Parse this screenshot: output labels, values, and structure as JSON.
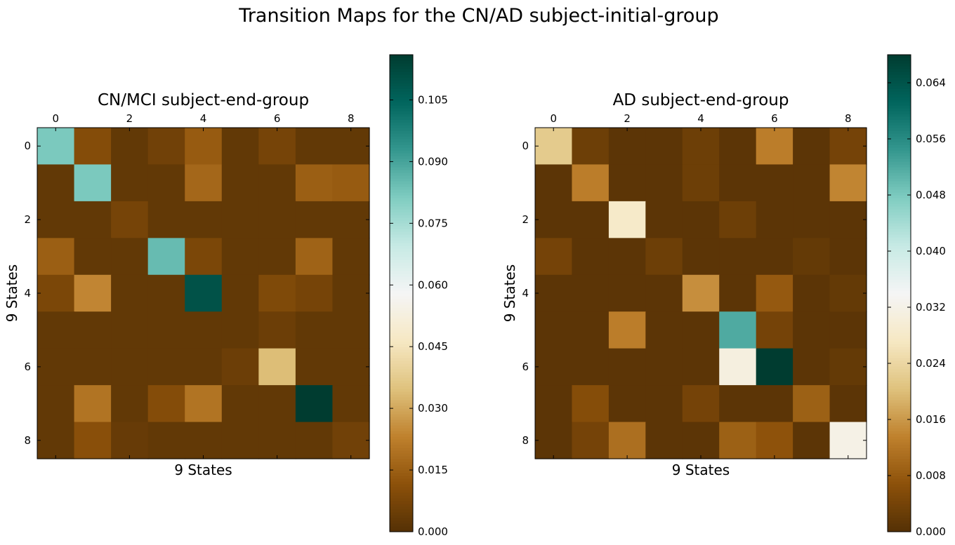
{
  "suptitle": "Transition Maps for the CN/AD subject-initial-group",
  "chart_data": [
    {
      "type": "heatmap",
      "title": "CN/MCI subject-end-group",
      "xlabel": "9 States",
      "ylabel": "9 States",
      "x_tick_labels": [
        "0",
        "2",
        "4",
        "6",
        "8"
      ],
      "y_tick_labels": [
        "0",
        "2",
        "4",
        "6",
        "8"
      ],
      "colormap": "BrBG",
      "vmin": 0.0,
      "vmax": 0.116,
      "colorbar_ticks": [
        "0.000",
        "0.015",
        "0.030",
        "0.045",
        "0.060",
        "0.075",
        "0.090",
        "0.105"
      ],
      "matrix": [
        [
          0.082,
          0.01,
          0.003,
          0.006,
          0.014,
          0.003,
          0.007,
          0.003,
          0.003
        ],
        [
          0.003,
          0.082,
          0.003,
          0.003,
          0.017,
          0.003,
          0.003,
          0.015,
          0.014
        ],
        [
          0.003,
          0.003,
          0.007,
          0.003,
          0.003,
          0.003,
          0.003,
          0.003,
          0.003
        ],
        [
          0.015,
          0.003,
          0.003,
          0.085,
          0.008,
          0.003,
          0.003,
          0.016,
          0.003
        ],
        [
          0.008,
          0.024,
          0.003,
          0.003,
          0.11,
          0.003,
          0.009,
          0.007,
          0.003
        ],
        [
          0.003,
          0.003,
          0.003,
          0.003,
          0.003,
          0.003,
          0.005,
          0.003,
          0.003
        ],
        [
          0.003,
          0.003,
          0.003,
          0.003,
          0.003,
          0.005,
          0.034,
          0.003,
          0.003
        ],
        [
          0.003,
          0.02,
          0.003,
          0.01,
          0.02,
          0.003,
          0.003,
          0.116,
          0.003
        ],
        [
          0.003,
          0.011,
          0.004,
          0.003,
          0.003,
          0.003,
          0.003,
          0.003,
          0.006
        ]
      ]
    },
    {
      "type": "heatmap",
      "title": "AD subject-end-group",
      "xlabel": "9 States",
      "ylabel": "9 States",
      "x_tick_labels": [
        "0",
        "2",
        "4",
        "6",
        "8"
      ],
      "y_tick_labels": [
        "0",
        "2",
        "4",
        "6",
        "8"
      ],
      "colormap": "BrBG",
      "vmin": 0.0,
      "vmax": 0.068,
      "colorbar_ticks": [
        "0.000",
        "0.008",
        "0.016",
        "0.024",
        "0.032",
        "0.040",
        "0.048",
        "0.056",
        "0.064"
      ],
      "matrix": [
        [
          0.022,
          0.003,
          0.001,
          0.001,
          0.003,
          0.001,
          0.013,
          0.001,
          0.004
        ],
        [
          0.001,
          0.013,
          0.001,
          0.001,
          0.003,
          0.001,
          0.001,
          0.001,
          0.014
        ],
        [
          0.001,
          0.001,
          0.028,
          0.001,
          0.001,
          0.003,
          0.001,
          0.001,
          0.001
        ],
        [
          0.004,
          0.001,
          0.001,
          0.003,
          0.001,
          0.001,
          0.001,
          0.002,
          0.001
        ],
        [
          0.001,
          0.001,
          0.001,
          0.001,
          0.015,
          0.001,
          0.008,
          0.001,
          0.002
        ],
        [
          0.001,
          0.001,
          0.013,
          0.001,
          0.001,
          0.052,
          0.004,
          0.001,
          0.001
        ],
        [
          0.001,
          0.001,
          0.001,
          0.001,
          0.001,
          0.031,
          0.068,
          0.001,
          0.002
        ],
        [
          0.001,
          0.006,
          0.001,
          0.001,
          0.004,
          0.001,
          0.001,
          0.009,
          0.001
        ],
        [
          0.001,
          0.004,
          0.011,
          0.001,
          0.001,
          0.009,
          0.007,
          0.001,
          0.032
        ]
      ]
    }
  ]
}
